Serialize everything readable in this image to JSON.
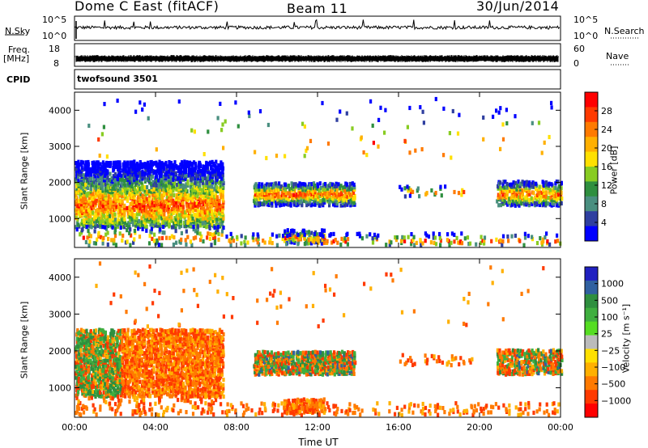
{
  "header": {
    "radar": "Dome C East (fitACF)",
    "beam": "Beam 11",
    "date": "30/Jun/2014"
  },
  "strips": {
    "nsky_label": "N.Sky",
    "nsky_ticks": [
      "10^5",
      "10^0"
    ],
    "nsearch_label": "N.Search",
    "nsearch_ticks": [
      "10^5",
      "10^0"
    ],
    "freq_label": "Freq.",
    "freq_unit": "[MHz]",
    "freq_ticks": [
      "18",
      "8"
    ],
    "nave_label": "Nave",
    "nave_ticks": [
      "60",
      "0"
    ],
    "cpid_label": "CPID",
    "cpid_value": "twofsound 3501"
  },
  "colorbars": {
    "power_label": "Power [dB]",
    "power_ticks": [
      "28",
      "24",
      "20",
      "16",
      "12",
      "8",
      "4"
    ],
    "power_colors": [
      "#ff0000",
      "#ff3a00",
      "#ff7a00",
      "#ffb000",
      "#ffe000",
      "#88cc22",
      "#2f8f3f",
      "#4a8f80",
      "#2f3fa0",
      "#0000ff"
    ],
    "velocity_label": "Velocity [m s⁻¹]",
    "velocity_ticks": [
      "1000",
      "500",
      "100",
      "25",
      "−25",
      "−100",
      "−500",
      "−1000"
    ],
    "velocity_colors": [
      "#2020c0",
      "#3060a0",
      "#2f8f3f",
      "#3faf3f",
      "#55dd22",
      "#bbbbbb",
      "#ffe000",
      "#ffb000",
      "#ff7a00",
      "#ff3a00",
      "#ff0000"
    ]
  },
  "chart_data": [
    {
      "type": "heatmap",
      "title": "Power",
      "ylabel": "Slant Range [km]",
      "xlabel": "",
      "x_ticks": [
        "00:00",
        "04:00",
        "08:00",
        "12:00",
        "16:00",
        "20:00",
        "00:00"
      ],
      "y_ticks": [
        "1000",
        "2000",
        "3000",
        "4000"
      ],
      "ylim": [
        200,
        4500
      ],
      "xlim_hours": [
        0,
        24
      ],
      "colorbar": "Power [dB]",
      "clim": [
        0,
        32
      ]
    },
    {
      "type": "heatmap",
      "title": "Velocity",
      "ylabel": "Slant Range [km]",
      "xlabel": "Time UT",
      "x_ticks": [
        "00:00",
        "04:00",
        "08:00",
        "12:00",
        "16:00",
        "20:00",
        "00:00"
      ],
      "y_ticks": [
        "1000",
        "2000",
        "3000",
        "4000"
      ],
      "ylim": [
        200,
        4500
      ],
      "xlim_hours": [
        0,
        24
      ],
      "colorbar": "Velocity [m s⁻¹]",
      "clim": [
        -1000,
        1000
      ]
    }
  ]
}
